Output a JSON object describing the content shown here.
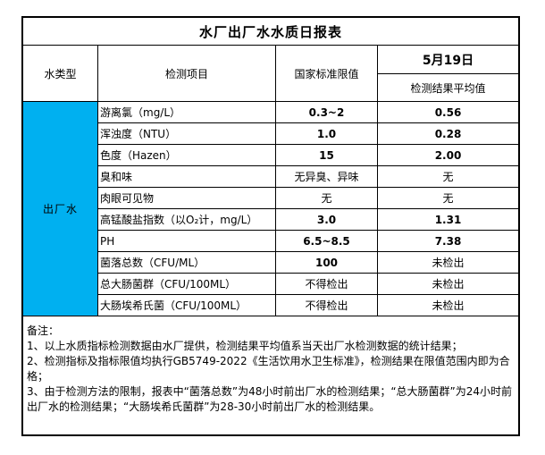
{
  "title": "水厂出厂水水质日报表",
  "header": {
    "water_type": "水类型",
    "item": "检测项目",
    "standard": "国家标准限值",
    "date": "5月19日",
    "result_avg": "检测结果平均值"
  },
  "water_type_value": "出厂水",
  "rows": [
    {
      "item": "游离氯（mg/L）",
      "standard": "0.3~2",
      "result": "0.56"
    },
    {
      "item": "浑浊度（NTU）",
      "standard": "1.0",
      "result": "0.28"
    },
    {
      "item": "色度（Hazen）",
      "standard": "15",
      "result": "2.00"
    },
    {
      "item": "臭和味",
      "standard": "无异臭、异味",
      "result": "无"
    },
    {
      "item": "肉眼可见物",
      "standard": "无",
      "result": "无"
    },
    {
      "item": "高锰酸盐指数（以O₂计，mg/L）",
      "standard": "3.0",
      "result": "1.31"
    },
    {
      "item": "PH",
      "standard": "6.5~8.5",
      "result": "7.38"
    },
    {
      "item": "菌落总数（CFU/ML）",
      "standard": "100",
      "result": "未检出"
    },
    {
      "item": "总大肠菌群（CFU/100ML）",
      "standard": "不得检出",
      "result": "未检出"
    },
    {
      "item": "大肠埃希氏菌（CFU/100ML）",
      "standard": "不得检出",
      "result": "未检出"
    }
  ],
  "notes": {
    "label": "备注：",
    "items": [
      "1、以上水质指标检测数据由水厂提供，检测结果平均值系当天出厂水检测数据的统计结果；",
      "2、检测指标及指标限值均执行GB5749-2022《生活饮用水卫生标准》，检测结果在限值范围内即为合格；",
      "3、由于检测方法的限制，报表中“菌落总数”为48小时前出厂水的检测结果；“总大肠菌群”为24小时前出厂水的检测结果；“大肠埃希氏菌群”为28-30小时前出厂水的检测结果。"
    ]
  },
  "colors": {
    "highlight": "#00B0F0",
    "border": "#000000",
    "background": "#FFFFFF"
  }
}
